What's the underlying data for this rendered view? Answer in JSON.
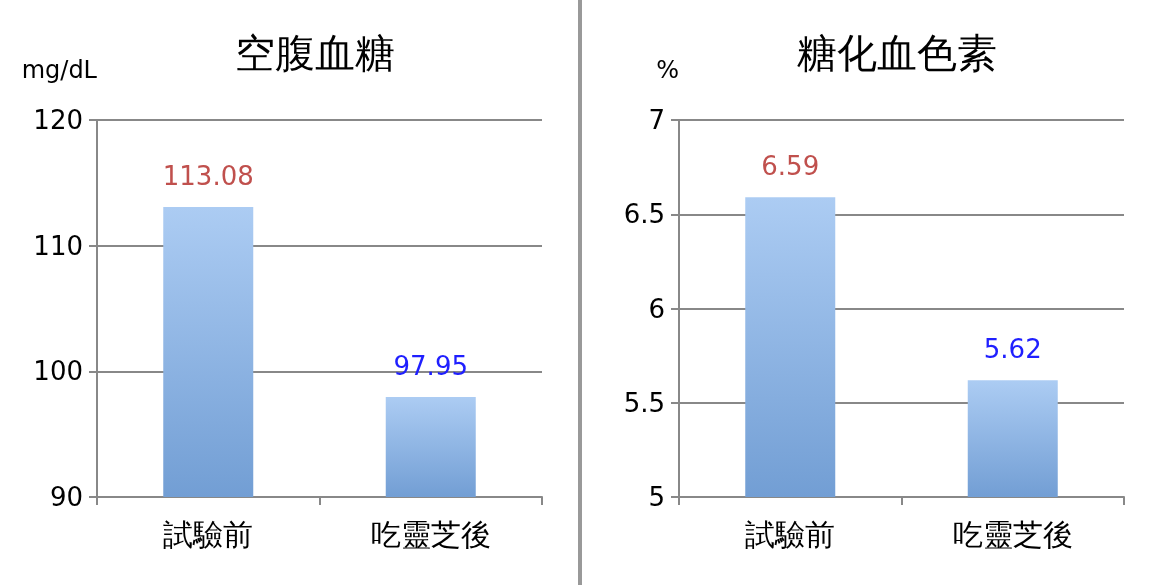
{
  "chart_data": [
    {
      "type": "bar",
      "title": "空腹血糖",
      "ylabel": "mg/dL",
      "categories": [
        "試驗前",
        "吃靈芝後"
      ],
      "values": [
        113.08,
        97.95
      ],
      "color": "#7fb0ec",
      "ylim": [
        90,
        120
      ],
      "yticks": [
        90,
        100,
        110,
        120
      ],
      "grid": "y",
      "data_labels": true
    },
    {
      "type": "bar",
      "title": "糖化血色素",
      "ylabel": "%",
      "categories": [
        "試驗前",
        "吃靈芝後"
      ],
      "values": [
        6.59,
        5.62
      ],
      "color": "#7fb0ec",
      "ylim": [
        5,
        7
      ],
      "yticks": [
        5,
        5.5,
        6,
        6.5,
        7
      ],
      "grid": "y",
      "data_labels": true
    }
  ]
}
